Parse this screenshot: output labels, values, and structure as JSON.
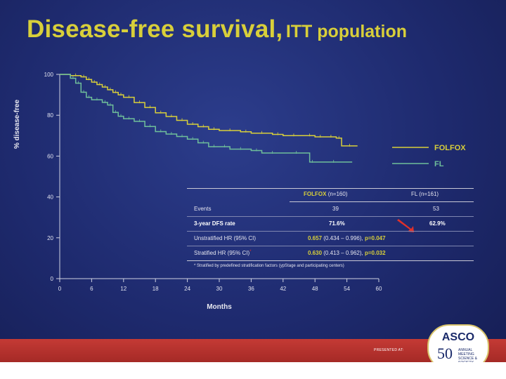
{
  "slide": {
    "title_main": "Disease-free survival,",
    "title_sub": "ITT population",
    "footer_presented": "PRESENTED AT:",
    "logo": {
      "name": "ASCO",
      "number": "50",
      "subtitle": "ANNUAL MEETING SCIENCE & SOCIETY"
    }
  },
  "colors": {
    "background": "#1e2a6e",
    "folfox": "#d8cf3a",
    "fl": "#6fbf9a",
    "footer_band": "#b3302c"
  },
  "chart_data": {
    "type": "line",
    "title": "Disease-free survival, ITT population",
    "xlabel": "Months",
    "ylabel": "% disease-free",
    "xlim": [
      0,
      60
    ],
    "ylim": [
      0,
      100
    ],
    "xticks": [
      0,
      6,
      12,
      18,
      24,
      30,
      36,
      42,
      48,
      54,
      60
    ],
    "yticks": [
      0,
      20,
      40,
      60,
      80,
      100
    ],
    "legend_position": "right",
    "series": [
      {
        "name": "FOLFOX",
        "color": "#d8cf3a",
        "x": [
          0,
          2,
          4,
          5,
          6,
          7,
          8,
          9,
          10,
          11,
          12,
          14,
          16,
          18,
          20,
          22,
          24,
          26,
          28,
          30,
          34,
          36,
          40,
          42,
          46,
          48,
          50,
          52,
          53,
          56
        ],
        "y": [
          100,
          99.4,
          98.8,
          97.5,
          96.2,
          95,
          93.8,
          92.5,
          91.2,
          90,
          88.8,
          86.2,
          83.8,
          81.2,
          79.4,
          77.5,
          75.6,
          74.4,
          73.1,
          72.5,
          71.9,
          71.2,
          70.6,
          70,
          70,
          69.4,
          69.4,
          68.8,
          65,
          65
        ]
      },
      {
        "name": "FL",
        "color": "#6fbf9a",
        "x": [
          0,
          2,
          3,
          4,
          5,
          6,
          8,
          9,
          10,
          11,
          12,
          14,
          16,
          18,
          20,
          22,
          24,
          26,
          28,
          30,
          32,
          36,
          38,
          42,
          47,
          48,
          55
        ],
        "y": [
          100,
          98.1,
          95.7,
          91.3,
          88.8,
          87.6,
          86.3,
          85,
          81.4,
          79.5,
          78.3,
          77,
          74.5,
          72,
          70.8,
          69.6,
          68.3,
          66.5,
          64.6,
          64.6,
          63.4,
          62.7,
          61.5,
          61.5,
          57.1,
          57.1,
          57.1
        ]
      }
    ],
    "table": {
      "headers": [
        "",
        "FOLFOX",
        "FL"
      ],
      "header_n": [
        "(n=160)",
        "(n=161)"
      ],
      "rows": [
        {
          "label": "Events",
          "folfox": "39",
          "fl": "53"
        },
        {
          "label": "3-year DFS rate",
          "folfox": "71.6%",
          "fl": "62.9%"
        },
        {
          "label": "Unstratified HR (95% CI)",
          "hr": "0.657",
          "ci": "(0.434 – 0.996),",
          "p": "p=0.047"
        },
        {
          "label": "Stratified HR (95% CI)",
          "label_mark": "*",
          "hr": "0.630",
          "ci": "(0.413 – 0.962),",
          "p": "p=0.032"
        }
      ],
      "footnote": "* Stratified by predefined stratification factors (ypStage and participating centers)"
    }
  }
}
